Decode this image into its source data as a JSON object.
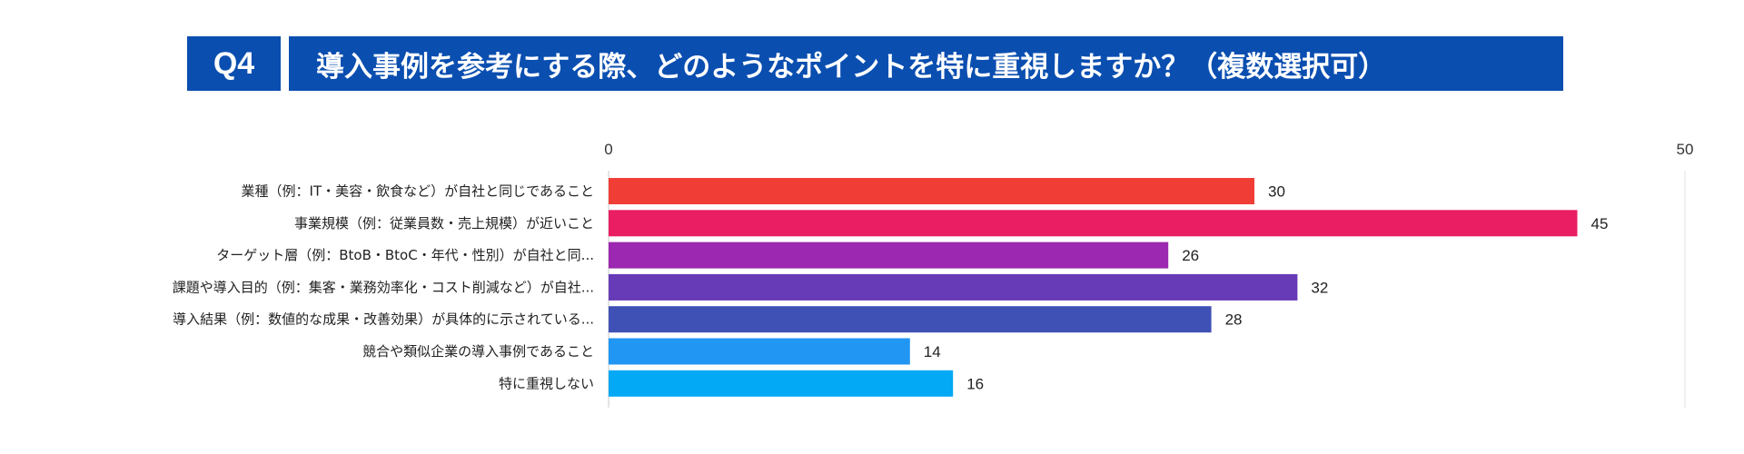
{
  "header": {
    "badge": "Q4",
    "question": "導入事例を参考にする際、どのようなポイントを特に重視しますか？（複数選択可）",
    "color": "#0a4eb0"
  },
  "chart_data": {
    "type": "bar",
    "orientation": "horizontal",
    "categories": [
      "業種（例：IT・美容・飲食など）が自社と同じであること",
      "事業規模（例：従業員数・売上規模）が近いこと",
      "ターゲット層（例：BtoB・BtoC・年代・性別）が自社と同...",
      "課題や導入目的（例：集客・業務効率化・コスト削減など）が自社...",
      "導入結果（例：数値的な成果・改善効果）が具体的に示されている...",
      "競合や類似企業の導入事例であること",
      "特に重視しない"
    ],
    "values": [
      30,
      45,
      26,
      32,
      28,
      14,
      16
    ],
    "colors": [
      "#f03e36",
      "#e91e63",
      "#9c27b0",
      "#673ab7",
      "#3f51b5",
      "#2196f3",
      "#03a9f4"
    ],
    "xlim": [
      0,
      50
    ],
    "ticks": [
      "0",
      "50"
    ],
    "grid": false
  }
}
